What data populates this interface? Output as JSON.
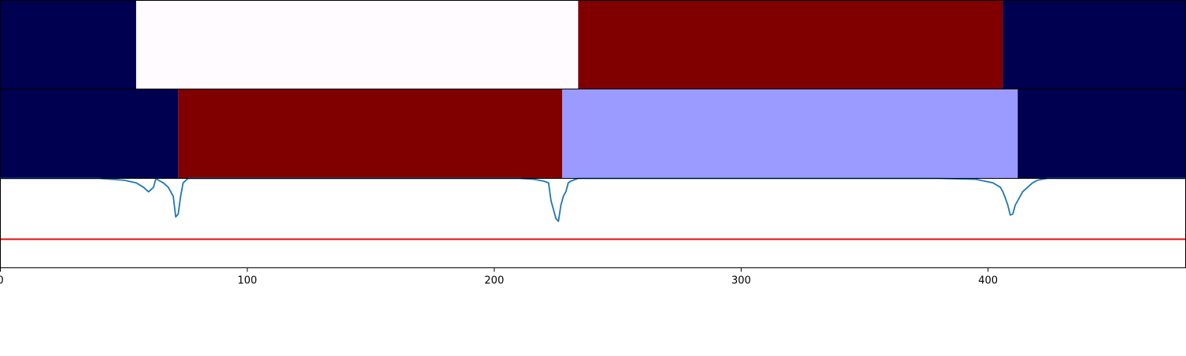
{
  "chart_data": [
    {
      "type": "heatmap",
      "panel": "segments-top",
      "xlim": [
        0,
        480
      ],
      "segments": [
        {
          "x0": 0,
          "x1": 55,
          "color": "#000050"
        },
        {
          "x0": 55,
          "x1": 234,
          "color": "#fffbff"
        },
        {
          "x0": 234,
          "x1": 406,
          "color": "#800000"
        },
        {
          "x0": 406,
          "x1": 480,
          "color": "#000050"
        }
      ]
    },
    {
      "type": "heatmap",
      "panel": "segments-middle",
      "xlim": [
        0,
        480
      ],
      "segments": [
        {
          "x0": 0,
          "x1": 72,
          "color": "#000050"
        },
        {
          "x0": 72,
          "x1": 227.5,
          "color": "#800000"
        },
        {
          "x0": 227.5,
          "x1": 412,
          "color": "#9a9aff"
        },
        {
          "x0": 412,
          "x1": 480,
          "color": "#000050"
        }
      ]
    },
    {
      "type": "line",
      "panel": "score-bottom",
      "xlim": [
        0,
        480
      ],
      "ylim": [
        -1.0,
        0.0
      ],
      "xticks": [
        0,
        100,
        200,
        300,
        400
      ],
      "threshold": {
        "value": -0.68,
        "color": "#e01010"
      },
      "series": [
        {
          "color": "#1f77b4",
          "x": [
            0,
            40,
            50,
            55,
            58,
            60,
            62,
            63,
            64,
            66,
            68,
            70,
            71,
            72,
            73,
            74,
            76,
            80,
            100,
            150,
            200,
            210,
            216,
            220,
            222,
            223,
            224,
            225,
            226,
            227,
            228,
            229,
            230,
            231,
            232,
            234,
            236,
            240,
            260,
            300,
            350,
            380,
            395,
            402,
            405,
            406,
            407,
            408,
            409,
            410,
            411,
            412,
            413,
            414,
            416,
            418,
            420,
            424,
            430,
            450,
            480
          ],
          "y": [
            0,
            0,
            -0.02,
            -0.05,
            -0.1,
            -0.15,
            -0.1,
            0,
            -0.02,
            -0.05,
            -0.1,
            -0.2,
            -0.43,
            -0.4,
            -0.2,
            -0.05,
            0,
            0,
            0,
            0,
            0,
            0,
            -0.01,
            -0.03,
            -0.05,
            -0.25,
            -0.35,
            -0.45,
            -0.48,
            -0.3,
            -0.2,
            -0.15,
            -0.05,
            -0.03,
            -0.02,
            0,
            0,
            0,
            0,
            0,
            0,
            0,
            -0.01,
            -0.05,
            -0.1,
            -0.15,
            -0.22,
            -0.3,
            -0.41,
            -0.4,
            -0.3,
            -0.25,
            -0.2,
            -0.15,
            -0.1,
            -0.05,
            -0.02,
            0,
            0,
            0,
            0
          ]
        }
      ]
    }
  ]
}
